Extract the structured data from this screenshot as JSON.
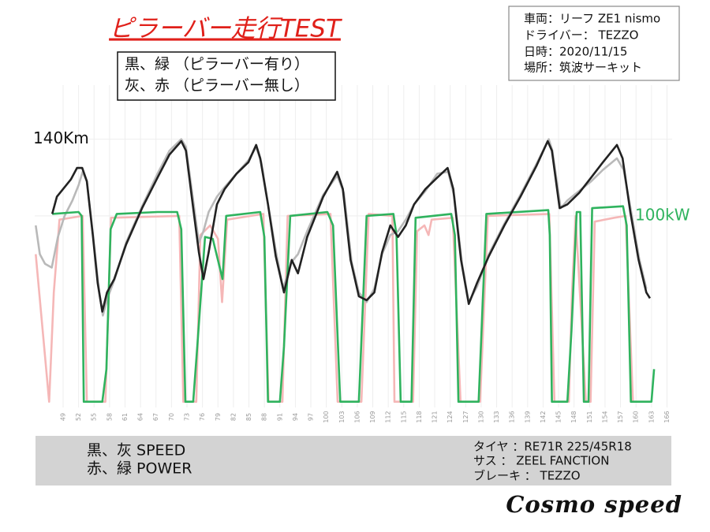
{
  "chart_data": {
    "type": "line",
    "title": "ピラーバー走行TEST",
    "legend_notes": [
      "黒、緑 （ピラーバー有り）",
      "灰、赤 （ピラーバー無し）"
    ],
    "info": [
      "車両：リーフ ZE1 nismo",
      "ドライバー： TEZZO",
      "日時：2020/11/15",
      "場所：筑波サーキット"
    ],
    "footer_left": [
      "黒、灰 SPEED",
      "赤、緑 POWER"
    ],
    "footer_right": [
      "タイヤ ：RE71R 225/45R18",
      "サス ： ZEEL FANCTION",
      "ブレーキ ： TEZZO"
    ],
    "brand": "Cosmo speed",
    "xlim": [
      43.5,
      167
    ],
    "xticks": [
      49,
      52,
      55,
      58,
      61,
      64,
      67,
      70,
      73,
      76,
      79,
      82,
      85,
      88,
      91,
      94,
      97,
      100,
      103,
      106,
      109,
      112,
      115,
      118,
      121,
      124,
      127,
      130,
      133,
      136,
      139,
      142,
      145,
      148,
      151,
      154,
      157,
      160,
      163,
      166
    ],
    "ylim": [
      0,
      160
    ],
    "yticks": [
      {
        "value": 140,
        "label": "140Km"
      }
    ],
    "y2lim": [
      0,
      160
    ],
    "y2ticks": [
      {
        "value": 100,
        "label": "100kW"
      }
    ],
    "series": [
      {
        "color": "#f5b7b7",
        "axis": "y2",
        "x": [
          43.7,
          46.3,
          47.2,
          48.3,
          52.8,
          53.6,
          57.2,
          58.3,
          71.5,
          72.3,
          74.8,
          75.6,
          77.5,
          79,
          79.8,
          80.8,
          87.8,
          88.8,
          91.5,
          92.5,
          100.8,
          102.2,
          106.8,
          108.2,
          112.8,
          113.2,
          116.8,
          117.6,
          119,
          119.8,
          120.4,
          124.5,
          126,
          129.8,
          131.3,
          143.2,
          144.2,
          147,
          147.6,
          148.3,
          150.3,
          151.2,
          152,
          155.8,
          158,
          159.4,
          162.8
        ],
        "values": [
          80,
          3,
          60,
          98,
          100,
          3,
          3,
          99,
          100,
          3,
          3,
          90,
          95,
          88,
          55,
          98,
          101,
          3,
          3,
          100,
          101,
          3,
          3,
          101,
          100,
          3,
          3,
          92,
          95,
          90,
          98,
          99,
          3,
          3,
          100,
          101,
          3,
          3,
          60,
          100,
          3,
          3,
          97,
          99,
          100,
          3,
          3
        ]
      },
      {
        "color": "#b9b9b9",
        "x": [
          43.7,
          44.5,
          45.5,
          46.8,
          48,
          49.3,
          50.8,
          52,
          52.8,
          53.6,
          54.8,
          56,
          56.7,
          57.6,
          59,
          61.2,
          64.3,
          67.3,
          69.6,
          71.9,
          72.8,
          74.2,
          75.3,
          76.2,
          77.2,
          78.8,
          80.3,
          82.6,
          84.9,
          86.4,
          87.4,
          88.9,
          90.2,
          91.6,
          93.3,
          94.5,
          96.3,
          99.4,
          102.1,
          103.4,
          104.9,
          106.3,
          107.8,
          109.3,
          110.8,
          112.4,
          113.9,
          115.4,
          117,
          119.2,
          121.5,
          123.6,
          124.8,
          126.3,
          127.6,
          129.2,
          131.5,
          134.5,
          137.6,
          140.7,
          143.1,
          143.8,
          145.4,
          146.7,
          149,
          151.3,
          153.6,
          156.3,
          157.6,
          159.2,
          160.6,
          162
        ],
        "values": [
          95,
          80,
          75,
          73,
          89,
          100,
          108,
          116,
          123,
          118,
          90,
          60,
          48,
          57,
          67,
          86,
          105,
          122,
          134,
          140,
          136,
          108,
          86,
          92,
          102,
          110,
          115,
          122,
          129,
          136,
          128,
          103,
          82,
          62,
          76,
          80,
          92,
          111,
          121,
          112,
          76,
          60,
          55,
          62,
          80,
          90,
          92,
          98,
          106,
          113,
          122,
          123,
          110,
          75,
          55,
          63,
          80,
          96,
          111,
          127,
          140,
          134,
          104,
          108,
          113,
          118,
          124,
          130,
          124,
          100,
          78,
          62
        ]
      },
      {
        "color": "#2fb35e",
        "axis": "y2",
        "x": [
          46.9,
          52,
          52.6,
          53,
          56.6,
          57.4,
          58.2,
          59.4,
          67.3,
          71.1,
          71.9,
          72.7,
          74.2,
          75,
          76.5,
          78,
          79.9,
          80.6,
          87.2,
          88,
          88.7,
          91,
          91.8,
          93,
          100.2,
          101.3,
          102.7,
          106.3,
          107.8,
          113,
          113.6,
          114.4,
          116.5,
          117.3,
          124.2,
          124.9,
          125.6,
          129.5,
          131,
          143,
          143.3,
          143.7,
          146.7,
          147.5,
          148.5,
          149.2,
          149.9,
          150.8,
          151.5,
          157.5,
          158.2,
          159,
          163,
          163.5
        ],
        "values": [
          101,
          102,
          100,
          3,
          3,
          20,
          93,
          101,
          102,
          102,
          93,
          3,
          3,
          32,
          89,
          88,
          67,
          100,
          102,
          89,
          3,
          3,
          32,
          100,
          102,
          95,
          3,
          3,
          100,
          101,
          90,
          3,
          3,
          99,
          101,
          90,
          3,
          3,
          101,
          103,
          90,
          3,
          3,
          40,
          102,
          102,
          3,
          3,
          104,
          105,
          95,
          3,
          3,
          20
        ]
      },
      {
        "color": "#222222",
        "x": [
          46.9,
          47.8,
          49,
          50.5,
          51.7,
          52.7,
          53.6,
          54.8,
          55.7,
          56.6,
          57.5,
          58.9,
          61.2,
          64.3,
          67.3,
          69.6,
          71.9,
          72.8,
          74.2,
          75.3,
          76.2,
          77.2,
          78.8,
          80.3,
          82.6,
          84.9,
          86.4,
          87.2,
          88.7,
          90.2,
          91.8,
          93.3,
          94.5,
          96.3,
          99.4,
          102.1,
          103.2,
          104.7,
          106.3,
          107.8,
          109.3,
          110.8,
          112.4,
          113.9,
          115.4,
          117,
          119.2,
          121.5,
          123.5,
          124.6,
          126.1,
          127.6,
          129.2,
          131.5,
          134.5,
          137.6,
          140.7,
          142.9,
          143.7,
          145.2,
          146.7,
          149,
          151.3,
          153.6,
          156.3,
          157.4,
          158.9,
          160.5,
          162,
          162.7
        ],
        "values": [
          101,
          110,
          114,
          119,
          125,
          125,
          118,
          89,
          65,
          50,
          60,
          67,
          85,
          104,
          120,
          132,
          139,
          134,
          104,
          81,
          67,
          81,
          106,
          114,
          122,
          128,
          137,
          130,
          106,
          79,
          60,
          77,
          70,
          89,
          110,
          123,
          114,
          77,
          58,
          56,
          60,
          81,
          95,
          89,
          95,
          106,
          114,
          120,
          125,
          114,
          77,
          54,
          65,
          79,
          95,
          110,
          126,
          139,
          134,
          104,
          106,
          112,
          120,
          128,
          137,
          130,
          102,
          77,
          60,
          57
        ]
      }
    ]
  }
}
